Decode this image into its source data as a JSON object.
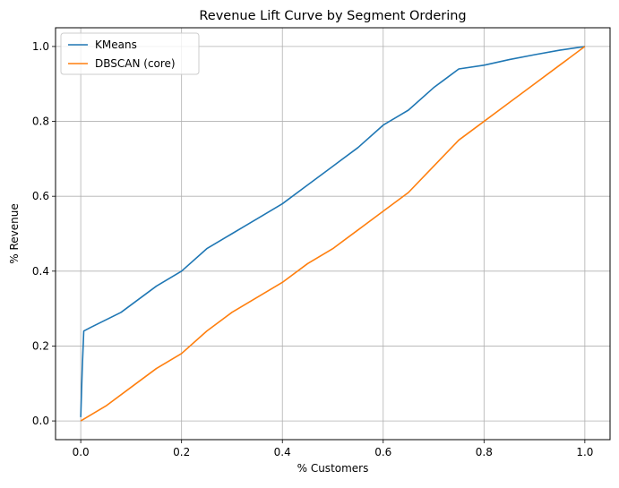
{
  "chart_data": {
    "type": "line",
    "title": "Revenue Lift Curve by Segment Ordering",
    "xlabel": "% Customers",
    "ylabel": "% Revenue",
    "xlim": [
      -0.05,
      1.05
    ],
    "ylim": [
      -0.05,
      1.05
    ],
    "xticks": [
      0.0,
      0.2,
      0.4,
      0.6,
      0.8,
      1.0
    ],
    "yticks": [
      0.0,
      0.2,
      0.4,
      0.6,
      0.8,
      1.0
    ],
    "xtick_labels": [
      "0.0",
      "0.2",
      "0.4",
      "0.6",
      "0.8",
      "1.0"
    ],
    "ytick_labels": [
      "0.0",
      "0.2",
      "0.4",
      "0.6",
      "0.8",
      "1.0"
    ],
    "grid": true,
    "legend_position": "top-left",
    "series": [
      {
        "name": "KMeans",
        "color": "#1f77b4",
        "x": [
          0.0,
          0.003,
          0.006,
          0.02,
          0.05,
          0.08,
          0.1,
          0.15,
          0.2,
          0.25,
          0.3,
          0.35,
          0.4,
          0.45,
          0.5,
          0.55,
          0.6,
          0.65,
          0.7,
          0.72,
          0.75,
          0.8,
          0.85,
          0.9,
          0.95,
          1.0
        ],
        "y": [
          0.01,
          0.14,
          0.24,
          0.25,
          0.27,
          0.29,
          0.31,
          0.36,
          0.4,
          0.46,
          0.5,
          0.54,
          0.58,
          0.63,
          0.68,
          0.73,
          0.79,
          0.83,
          0.89,
          0.91,
          0.94,
          0.95,
          0.965,
          0.978,
          0.99,
          1.0
        ]
      },
      {
        "name": "DBSCAN (core)",
        "color": "#ff7f0e",
        "x": [
          0.0,
          0.05,
          0.1,
          0.15,
          0.2,
          0.25,
          0.3,
          0.35,
          0.4,
          0.45,
          0.5,
          0.55,
          0.6,
          0.65,
          0.7,
          0.75,
          0.8,
          0.85,
          0.9,
          0.95,
          1.0
        ],
        "y": [
          0.0,
          0.04,
          0.09,
          0.14,
          0.18,
          0.24,
          0.29,
          0.33,
          0.37,
          0.42,
          0.46,
          0.51,
          0.56,
          0.61,
          0.68,
          0.75,
          0.8,
          0.85,
          0.9,
          0.95,
          1.0
        ]
      }
    ]
  }
}
